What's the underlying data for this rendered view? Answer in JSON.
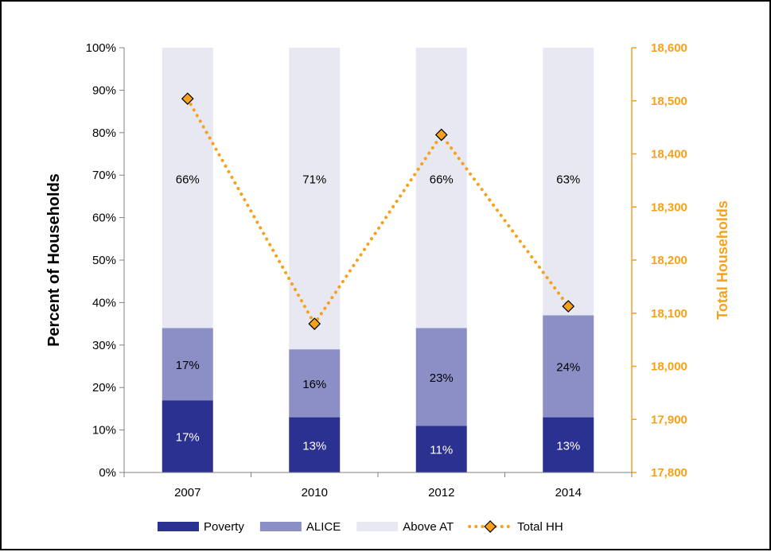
{
  "chart_data": {
    "type": "bar",
    "stacked": true,
    "categories": [
      "2007",
      "2010",
      "2012",
      "2014"
    ],
    "series": [
      {
        "name": "Poverty",
        "values": [
          17,
          13,
          11,
          13
        ],
        "labels": [
          "17%",
          "13%",
          "11%",
          "13%"
        ],
        "color": "#2b3190",
        "label_color": "#ffffff"
      },
      {
        "name": "ALICE",
        "values": [
          17,
          16,
          23,
          24
        ],
        "labels": [
          "17%",
          "16%",
          "23%",
          "24%"
        ],
        "color": "#8b8fc5",
        "label_color": "#000000"
      },
      {
        "name": "Above AT",
        "values": [
          66,
          71,
          66,
          63
        ],
        "labels": [
          "66%",
          "71%",
          "66%",
          "63%"
        ],
        "color": "#e8e8f2",
        "label_color": "#000000"
      }
    ],
    "line_series": {
      "name": "Total HH",
      "values": [
        18504,
        18080,
        18436,
        18113
      ],
      "color": "#f7a11a",
      "axis": "right"
    },
    "ylabel": "Percent of Households",
    "ylabel_right": "Total Households",
    "ylim": [
      0,
      100
    ],
    "ylim_right": [
      17800,
      18600
    ],
    "yticks": [
      "0%",
      "10%",
      "20%",
      "30%",
      "40%",
      "50%",
      "60%",
      "70%",
      "80%",
      "90%",
      "100%"
    ],
    "yticks_right": [
      "17,800",
      "17,900",
      "18,000",
      "18,100",
      "18,200",
      "18,300",
      "18,400",
      "18,500",
      "18,600"
    ],
    "legend_position": "bottom",
    "grid": false,
    "right_axis_color": "#f7a11a"
  }
}
